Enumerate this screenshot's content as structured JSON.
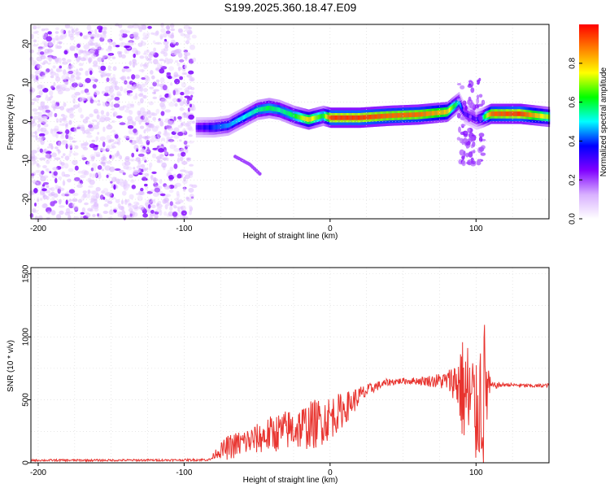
{
  "figure": {
    "title": "S199.2025.360.18.47.E09"
  },
  "chart_data": [
    {
      "type": "heatmap",
      "title": "S199.2025.360.18.47.E09",
      "xlabel": "Height of straight line (km)",
      "ylabel": "Frequency (Hz)",
      "xlim": [
        -205,
        150
      ],
      "ylim": [
        -25,
        25
      ],
      "xticks": [
        -200,
        -100,
        0,
        100
      ],
      "yticks": [
        -20,
        -10,
        0,
        10,
        20
      ],
      "colorbar": {
        "label": "Normalized spectral amplitude",
        "range": [
          0.0,
          1.0
        ],
        "ticks": [
          0.0,
          0.2,
          0.4,
          0.6,
          0.8
        ],
        "colormap": [
          "#ffffff",
          "#d8b0ff",
          "#8000ff",
          "#0000ff",
          "#00ffff",
          "#00ff00",
          "#ffff00",
          "#ff8000",
          "#ff0000"
        ]
      },
      "regions": [
        {
          "name": "noise",
          "x_range": [
            -205,
            -93
          ],
          "f_range": [
            -25,
            25
          ],
          "amplitude": 0.1
        },
        {
          "name": "echo-ridge",
          "x": [
            -92,
            -80,
            -70,
            -60,
            -50,
            -42,
            -35,
            -25,
            -15,
            -5,
            0,
            20,
            40,
            60,
            80,
            88,
            92,
            100,
            104,
            110,
            130,
            150
          ],
          "frequency_hz": [
            -1.5,
            -1.5,
            -1.0,
            1.0,
            3.0,
            3.5,
            3.0,
            1.5,
            0.5,
            1.5,
            1.0,
            1.0,
            1.5,
            1.8,
            2.5,
            5.0,
            2.0,
            0.5,
            1.0,
            2.0,
            2.0,
            1.2
          ],
          "amplitude": [
            0.3,
            0.4,
            0.45,
            0.5,
            0.55,
            0.6,
            0.55,
            0.6,
            0.8,
            0.6,
            0.95,
            0.95,
            0.9,
            0.9,
            0.8,
            0.5,
            0.3,
            0.3,
            0.5,
            0.9,
            0.95,
            0.7
          ]
        },
        {
          "name": "branch",
          "x": [
            -65,
            -55,
            -48
          ],
          "frequency_hz": [
            -9,
            -11,
            -13.5
          ],
          "amplitude": 0.2
        },
        {
          "name": "scatter",
          "x_range": [
            88,
            105
          ],
          "f_range": [
            -11,
            11
          ],
          "amplitude": 0.15
        }
      ]
    },
    {
      "type": "line",
      "xlabel": "Height of straight line (km)",
      "ylabel": "SNR (10 * v/v)",
      "xlim": [
        -205,
        150
      ],
      "ylim": [
        0,
        1550
      ],
      "xticks": [
        -200,
        -100,
        0,
        100
      ],
      "yticks": [
        0,
        500,
        1000,
        1500
      ],
      "color": "#e8332e",
      "series": [
        {
          "name": "SNR",
          "x": [
            -205,
            -150,
            -100,
            -82,
            -78,
            -70,
            -60,
            -50,
            -40,
            -30,
            -20,
            -10,
            0,
            10,
            20,
            30,
            40,
            50,
            60,
            70,
            80,
            85,
            88,
            90,
            92,
            95,
            98,
            100,
            102,
            105,
            108,
            110,
            120,
            130,
            140,
            150
          ],
          "mean": [
            20,
            20,
            22,
            25,
            80,
            120,
            160,
            190,
            230,
            260,
            280,
            310,
            360,
            430,
            530,
            600,
            640,
            650,
            650,
            650,
            650,
            650,
            640,
            600,
            550,
            500,
            420,
            350,
            500,
            550,
            600,
            610,
            620,
            615,
            610,
            615
          ],
          "amplitude": [
            8,
            8,
            8,
            10,
            40,
            100,
            110,
            120,
            150,
            160,
            180,
            200,
            180,
            130,
            80,
            40,
            30,
            25,
            30,
            50,
            80,
            150,
            300,
            400,
            450,
            500,
            550,
            400,
            500,
            700,
            300,
            30,
            15,
            15,
            15,
            15
          ]
        }
      ]
    }
  ]
}
